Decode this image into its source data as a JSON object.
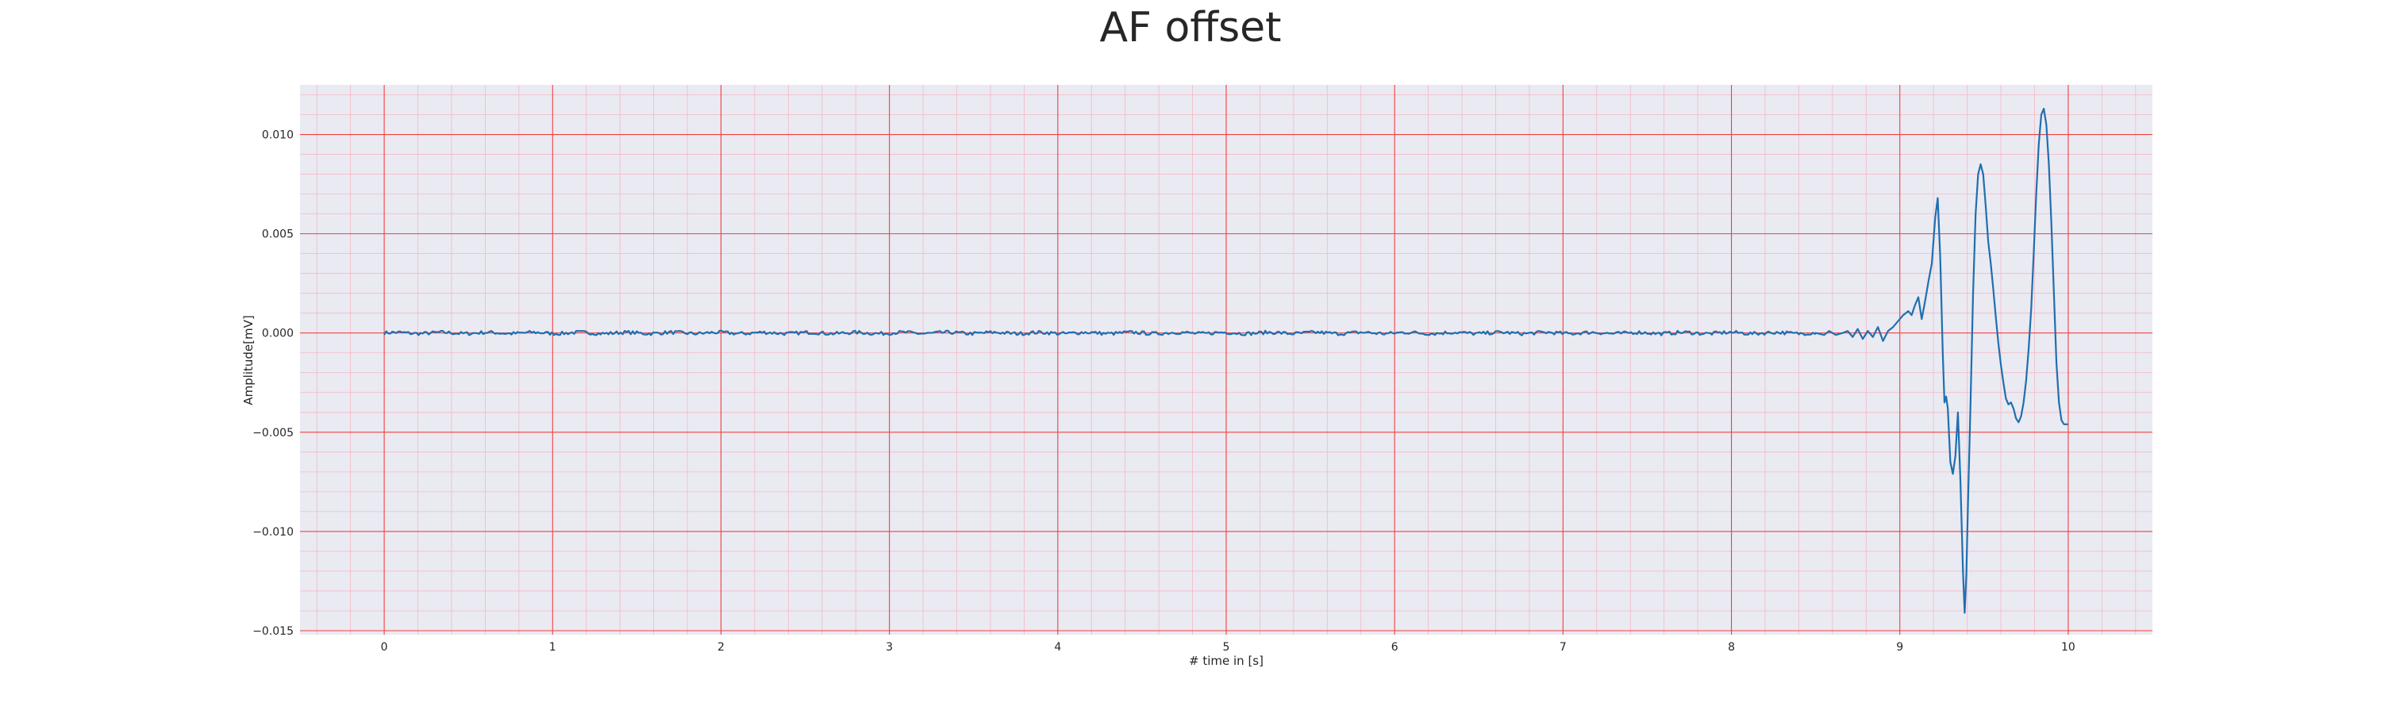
{
  "chart_data": {
    "type": "line",
    "title": "AF offset",
    "xlabel": "# time in [s]",
    "ylabel": "Amplitude[mV]",
    "xlim": [
      -0.5,
      10.5
    ],
    "ylim": [
      -0.0152,
      0.0125
    ],
    "x_ticks": [
      0,
      1,
      2,
      3,
      4,
      5,
      6,
      7,
      8,
      9,
      10
    ],
    "y_ticks": [
      -0.015,
      -0.01,
      -0.005,
      0.0,
      0.005,
      0.01
    ],
    "x_tick_labels": [
      "0",
      "1",
      "2",
      "3",
      "4",
      "5",
      "6",
      "7",
      "8",
      "9",
      "10"
    ],
    "y_tick_labels": [
      "−0.015",
      "−0.010",
      "−0.005",
      "0.000",
      "0.005",
      "0.010"
    ],
    "grid": true,
    "minor_grid": true,
    "colors": {
      "background": "#eaeaf2",
      "major_grid": "#f04040",
      "minor_grid": "#f5b8c4",
      "line": "#1f6fb0"
    },
    "series": [
      {
        "noise_range": [
          0,
          8.5
        ],
        "points": [
          [
            8.5,
            0.0
          ],
          [
            8.55,
            -0.0001
          ],
          [
            8.58,
            0.0001
          ],
          [
            8.62,
            -0.0001
          ],
          [
            8.66,
            0.0
          ],
          [
            8.69,
            0.0001
          ],
          [
            8.72,
            -0.0002
          ],
          [
            8.75,
            0.0002
          ],
          [
            8.78,
            -0.0003
          ],
          [
            8.81,
            0.0001
          ],
          [
            8.84,
            -0.0002
          ],
          [
            8.87,
            0.0003
          ],
          [
            8.9,
            -0.0004
          ],
          [
            8.93,
            0.0001
          ],
          [
            8.96,
            0.0003
          ],
          [
            8.99,
            0.0006
          ],
          [
            9.02,
            0.0009
          ],
          [
            9.05,
            0.0011
          ],
          [
            9.07,
            0.0009
          ],
          [
            9.09,
            0.0014
          ],
          [
            9.11,
            0.0018
          ],
          [
            9.13,
            0.0007
          ],
          [
            9.15,
            0.0016
          ],
          [
            9.17,
            0.0026
          ],
          [
            9.19,
            0.0035
          ],
          [
            9.21,
            0.0058
          ],
          [
            9.225,
            0.0068
          ],
          [
            9.24,
            0.0038
          ],
          [
            9.255,
            -0.001
          ],
          [
            9.265,
            -0.0035
          ],
          [
            9.275,
            -0.0032
          ],
          [
            9.285,
            -0.0038
          ],
          [
            9.3,
            -0.0065
          ],
          [
            9.315,
            -0.0071
          ],
          [
            9.33,
            -0.0062
          ],
          [
            9.345,
            -0.004
          ],
          [
            9.36,
            -0.0075
          ],
          [
            9.375,
            -0.012
          ],
          [
            9.385,
            -0.0141
          ],
          [
            9.395,
            -0.0122
          ],
          [
            9.405,
            -0.0085
          ],
          [
            9.42,
            -0.0035
          ],
          [
            9.435,
            0.002
          ],
          [
            9.45,
            0.006
          ],
          [
            9.465,
            0.008
          ],
          [
            9.48,
            0.0085
          ],
          [
            9.495,
            0.008
          ],
          [
            9.51,
            0.0064
          ],
          [
            9.525,
            0.0046
          ],
          [
            9.54,
            0.0035
          ],
          [
            9.555,
            0.0022
          ],
          [
            9.57,
            0.0008
          ],
          [
            9.585,
            -0.0005
          ],
          [
            9.6,
            -0.0016
          ],
          [
            9.615,
            -0.0025
          ],
          [
            9.63,
            -0.0033
          ],
          [
            9.645,
            -0.0036
          ],
          [
            9.66,
            -0.0035
          ],
          [
            9.675,
            -0.0038
          ],
          [
            9.69,
            -0.0043
          ],
          [
            9.705,
            -0.0045
          ],
          [
            9.72,
            -0.0042
          ],
          [
            9.735,
            -0.0035
          ],
          [
            9.75,
            -0.0024
          ],
          [
            9.765,
            -0.0008
          ],
          [
            9.78,
            0.0012
          ],
          [
            9.795,
            0.004
          ],
          [
            9.81,
            0.007
          ],
          [
            9.825,
            0.0095
          ],
          [
            9.84,
            0.011
          ],
          [
            9.855,
            0.0113
          ],
          [
            9.87,
            0.0105
          ],
          [
            9.885,
            0.0085
          ],
          [
            9.9,
            0.0055
          ],
          [
            9.915,
            0.002
          ],
          [
            9.93,
            -0.0015
          ],
          [
            9.945,
            -0.0035
          ],
          [
            9.96,
            -0.0044
          ],
          [
            9.975,
            -0.0046
          ],
          [
            9.99,
            -0.0046
          ],
          [
            10.0,
            -0.0046
          ]
        ]
      }
    ]
  }
}
